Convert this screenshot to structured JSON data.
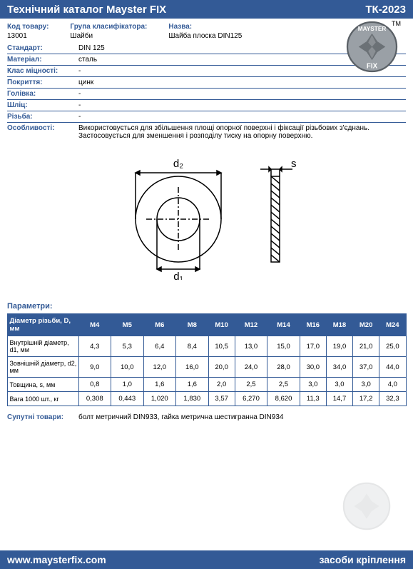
{
  "header": {
    "title": "Технічний каталог Mayster FIX",
    "code": "ТК-2023"
  },
  "top": {
    "code_label": "Код товару:",
    "code_value": "13001",
    "group_label": "Група класифікатора:",
    "group_value": "Шайби",
    "name_label": "Назва:",
    "name_value": "Шайба плоска DIN125",
    "tm": "ТМ"
  },
  "logo": {
    "text_top": "MAYSTER",
    "text_bottom": "FIX",
    "circle_fill": "#9aa0a6",
    "circle_stroke": "#5a6066",
    "text_color": "#ffffff"
  },
  "specs": [
    {
      "label": "Стандарт:",
      "value": "DIN 125"
    },
    {
      "label": "Матеріал:",
      "value": "сталь"
    },
    {
      "label": "Клас міцності:",
      "value": "-"
    },
    {
      "label": "Покриття:",
      "value": "цинк"
    },
    {
      "label": "Голівка:",
      "value": "-"
    },
    {
      "label": "Шліц:",
      "value": "-"
    },
    {
      "label": "Різьба:",
      "value": "-"
    },
    {
      "label": "Особливості:",
      "value": "Використовується  для збільшення площі опорної поверхні і фіксації різьбових з'єднань. Застосовується для зменшення і розподілу тиску на опорну поверхню."
    }
  ],
  "diagram": {
    "d2_label": "d₂",
    "d1_label": "d₁",
    "s_label": "s",
    "stroke": "#000000",
    "hatch": "#000000"
  },
  "params": {
    "title": "Параметри:",
    "header_label": "Діаметр різьби, D, мм",
    "columns": [
      "M4",
      "M5",
      "M6",
      "M8",
      "M10",
      "M12",
      "M14",
      "M16",
      "M18",
      "M20",
      "M24"
    ],
    "rows": [
      {
        "label": "Внутрішній діаметр, d1, мм",
        "values": [
          "4,3",
          "5,3",
          "6,4",
          "8,4",
          "10,5",
          "13,0",
          "15,0",
          "17,0",
          "19,0",
          "21,0",
          "25,0"
        ]
      },
      {
        "label": "Зовнішній діаметр, d2, мм",
        "values": [
          "9,0",
          "10,0",
          "12,0",
          "16,0",
          "20,0",
          "24,0",
          "28,0",
          "30,0",
          "34,0",
          "37,0",
          "44,0"
        ]
      },
      {
        "label": "Товщина, s, мм",
        "values": [
          "0,8",
          "1,0",
          "1,6",
          "1,6",
          "2,0",
          "2,5",
          "2,5",
          "3,0",
          "3,0",
          "3,0",
          "4,0"
        ]
      },
      {
        "label": "Вага 1000 шт., кг",
        "values": [
          "0,308",
          "0,443",
          "1,020",
          "1,830",
          "3,57",
          "6,270",
          "8,620",
          "11,3",
          "14,7",
          "17,2",
          "32,3"
        ]
      }
    ]
  },
  "related": {
    "label": "Супутні товари:",
    "value": "болт метричний DIN933, гайка метрична шестигранна DIN934"
  },
  "footer": {
    "url": "www.maysterfix.com",
    "tagline": "засоби кріплення"
  },
  "colors": {
    "brand": "#335a96",
    "white": "#ffffff"
  }
}
